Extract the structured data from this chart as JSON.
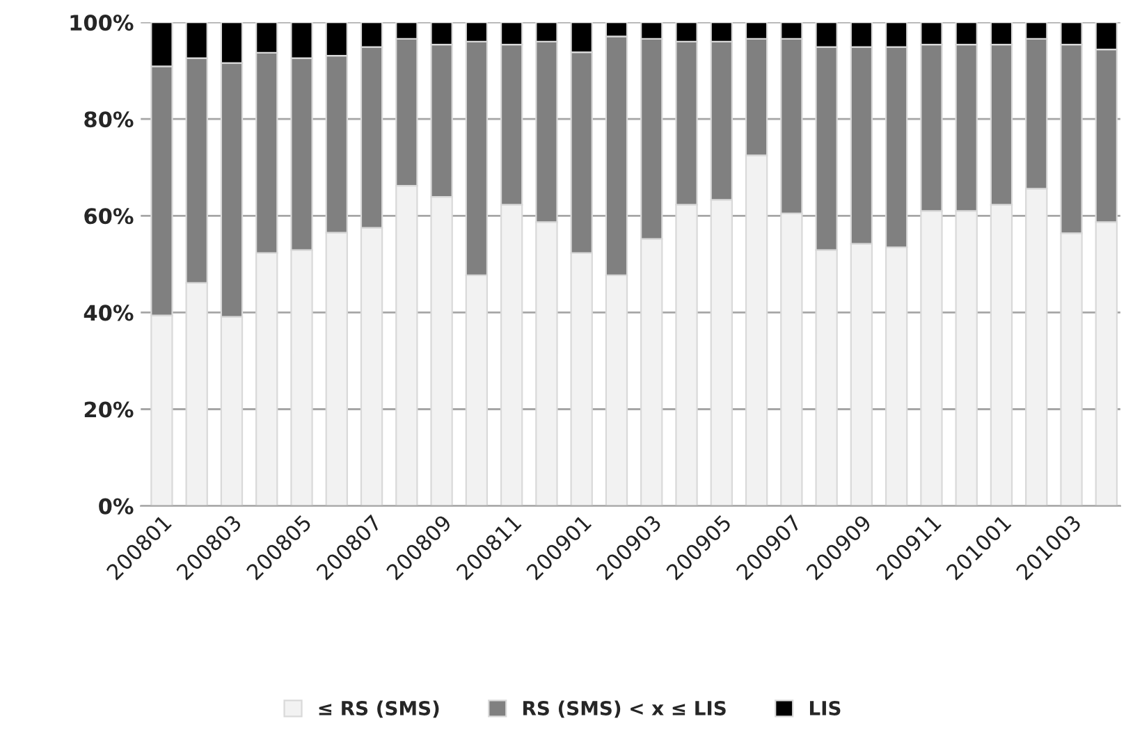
{
  "chart_data": {
    "type": "bar",
    "stacked": true,
    "categories": [
      "200801",
      null,
      "200803",
      null,
      "200805",
      null,
      "200807",
      null,
      "200809",
      null,
      "200811",
      null,
      "200901",
      null,
      "200903",
      null,
      "200905",
      null,
      "200907",
      null,
      "200909",
      null,
      "200911",
      null,
      "201001",
      null,
      "201003",
      null
    ],
    "series": [
      {
        "name": "≤ RS (SMS)",
        "color": "#f2f2f2",
        "values": [
          39.4,
          46.1,
          39.1,
          52.3,
          52.9,
          56.5,
          57.5,
          66.2,
          63.9,
          47.7,
          62.3,
          58.7,
          52.3,
          47.7,
          55.2,
          62.3,
          63.3,
          72.5,
          60.5,
          52.9,
          54.2,
          53.5,
          61.0,
          61.0,
          62.3,
          65.6,
          56.4,
          58.7
        ]
      },
      {
        "name": "RS (SMS) < x ≤ LIS",
        "color": "#808080",
        "values": [
          51.5,
          46.5,
          52.5,
          41.4,
          39.7,
          36.6,
          37.4,
          30.4,
          31.5,
          48.3,
          33.1,
          37.3,
          41.5,
          49.4,
          41.4,
          33.7,
          32.7,
          24.1,
          36.1,
          42.0,
          40.7,
          41.4,
          34.4,
          34.4,
          33.1,
          31.0,
          39.0,
          35.7
        ]
      },
      {
        "name": "LIS",
        "color": "#000000",
        "values": [
          9.1,
          7.4,
          8.4,
          6.3,
          7.4,
          6.9,
          5.1,
          3.4,
          4.6,
          4.0,
          4.6,
          4.0,
          6.2,
          2.9,
          3.4,
          4.0,
          4.0,
          3.4,
          3.4,
          5.1,
          5.1,
          5.1,
          4.6,
          4.6,
          4.6,
          3.4,
          4.6,
          5.6
        ]
      }
    ],
    "ylim": [
      0,
      100
    ],
    "yticks": [
      {
        "value": 0,
        "label": "0%"
      },
      {
        "value": 20,
        "label": "20%"
      },
      {
        "value": 40,
        "label": "40%"
      },
      {
        "value": 60,
        "label": "60%"
      },
      {
        "value": 80,
        "label": "80%"
      },
      {
        "value": 100,
        "label": "100%"
      }
    ],
    "grid": "y",
    "legend": "bottom"
  }
}
